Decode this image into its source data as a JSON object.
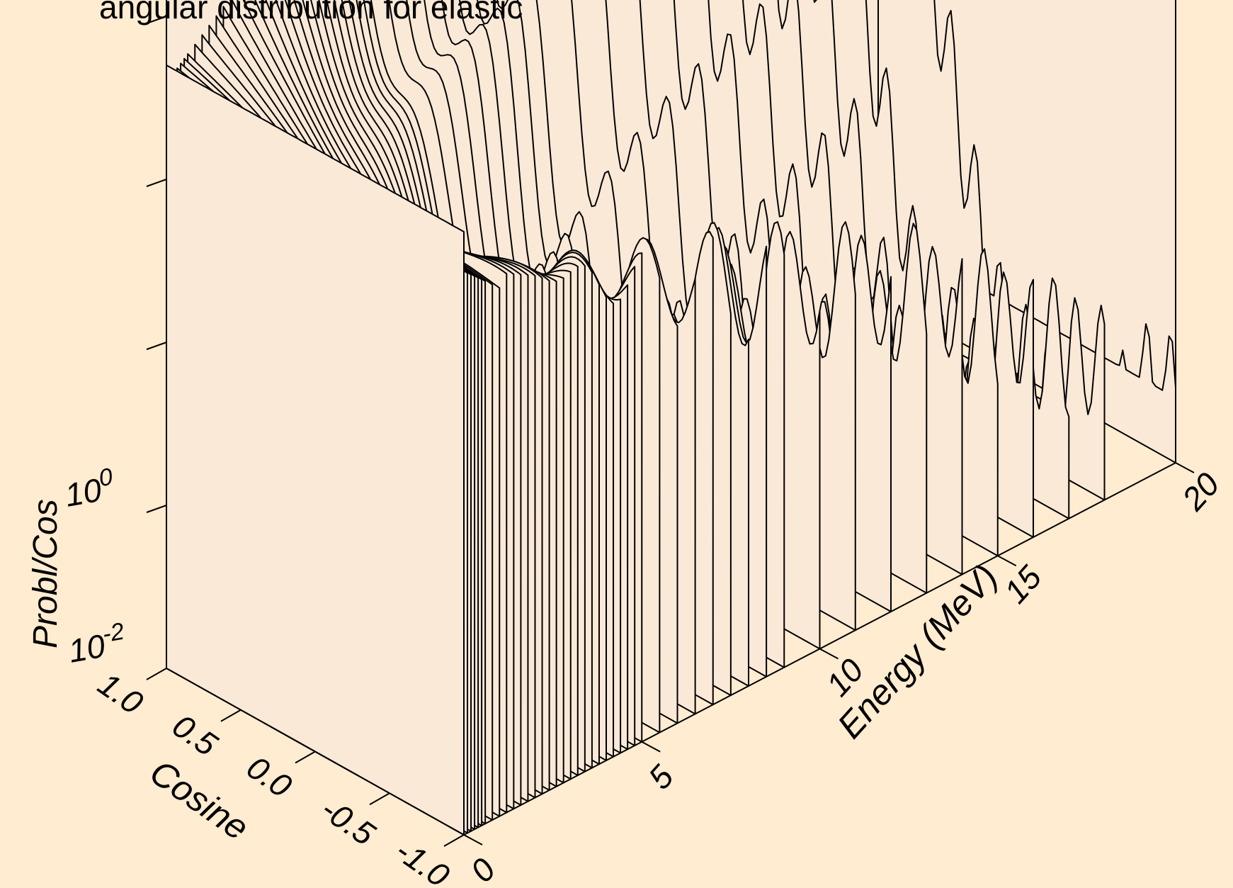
{
  "chart_data": {
    "type": "waterfall-3d",
    "title": "angular distribution for elastic",
    "xlabel": "Cosine",
    "ylabel": "Energy (MeV)",
    "zlabel": "Probl/Cos",
    "x_ticks": [
      "1.0",
      "0.5",
      "0.0",
      "-0.5",
      "-1.0"
    ],
    "x_range": [
      1.0,
      -1.0
    ],
    "y_ticks": [
      "0",
      "5",
      "10",
      "15",
      "20"
    ],
    "y_range": [
      0,
      20
    ],
    "z_scale": "log",
    "z_ticks": [
      {
        "base": "10",
        "exp": "0"
      },
      {
        "base": "10",
        "exp": "-2"
      }
    ],
    "grid": false,
    "energies_mev": [
      0.0,
      0.1,
      0.2,
      0.3,
      0.4,
      0.5,
      0.6,
      0.8,
      1.0,
      1.2,
      1.4,
      1.6,
      1.8,
      2.0,
      2.2,
      2.4,
      2.6,
      2.8,
      3.0,
      3.2,
      3.4,
      3.6,
      3.8,
      4.0,
      4.2,
      4.4,
      4.6,
      4.8,
      5.0,
      5.5,
      6.0,
      6.5,
      7.0,
      7.5,
      8.0,
      8.5,
      9.0,
      10.0,
      11.0,
      12.0,
      13.0,
      14.0,
      15.0,
      16.0,
      17.0,
      18.0,
      20.0
    ],
    "fill_color": "#FBE9D8",
    "background_color": "#FFECD1"
  }
}
